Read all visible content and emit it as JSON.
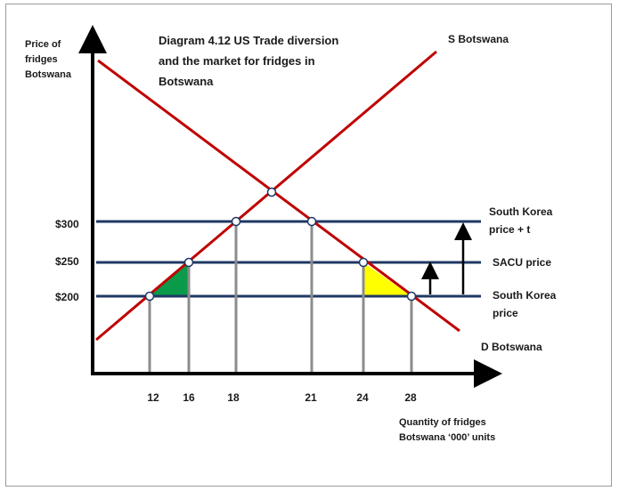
{
  "diagram": {
    "title_lines": [
      "Diagram  4.12 US Trade diversion",
      "and the market for fridges in",
      "Botswana"
    ],
    "y_axis_label_lines": [
      "Price of",
      "fridges",
      "Botswana"
    ],
    "x_axis_label_lines": [
      "Quantity of fridges",
      "Botswana ‘000’ units"
    ],
    "supply_label": "S Botswana",
    "demand_label": "D Botswana",
    "price_lines": [
      {
        "price": 300,
        "price_label": "$300",
        "name_lines": [
          "South Korea",
          "price + t"
        ]
      },
      {
        "price": 250,
        "price_label": "$250",
        "name_lines": [
          "SACU price"
        ]
      },
      {
        "price": 200,
        "price_label": "$200",
        "name_lines": [
          "South Korea",
          "price"
        ]
      }
    ],
    "quantity_ticks": [
      "12",
      "16",
      "18",
      "21",
      "24",
      "28"
    ],
    "colors": {
      "supply": "#c00000",
      "demand": "#c00000",
      "price_line": "#1f3864",
      "drop_line": "#8c8c8c",
      "green_triangle": "#0a9a4a",
      "yellow_triangle": "#ffff00",
      "axis": "#000000"
    }
  }
}
